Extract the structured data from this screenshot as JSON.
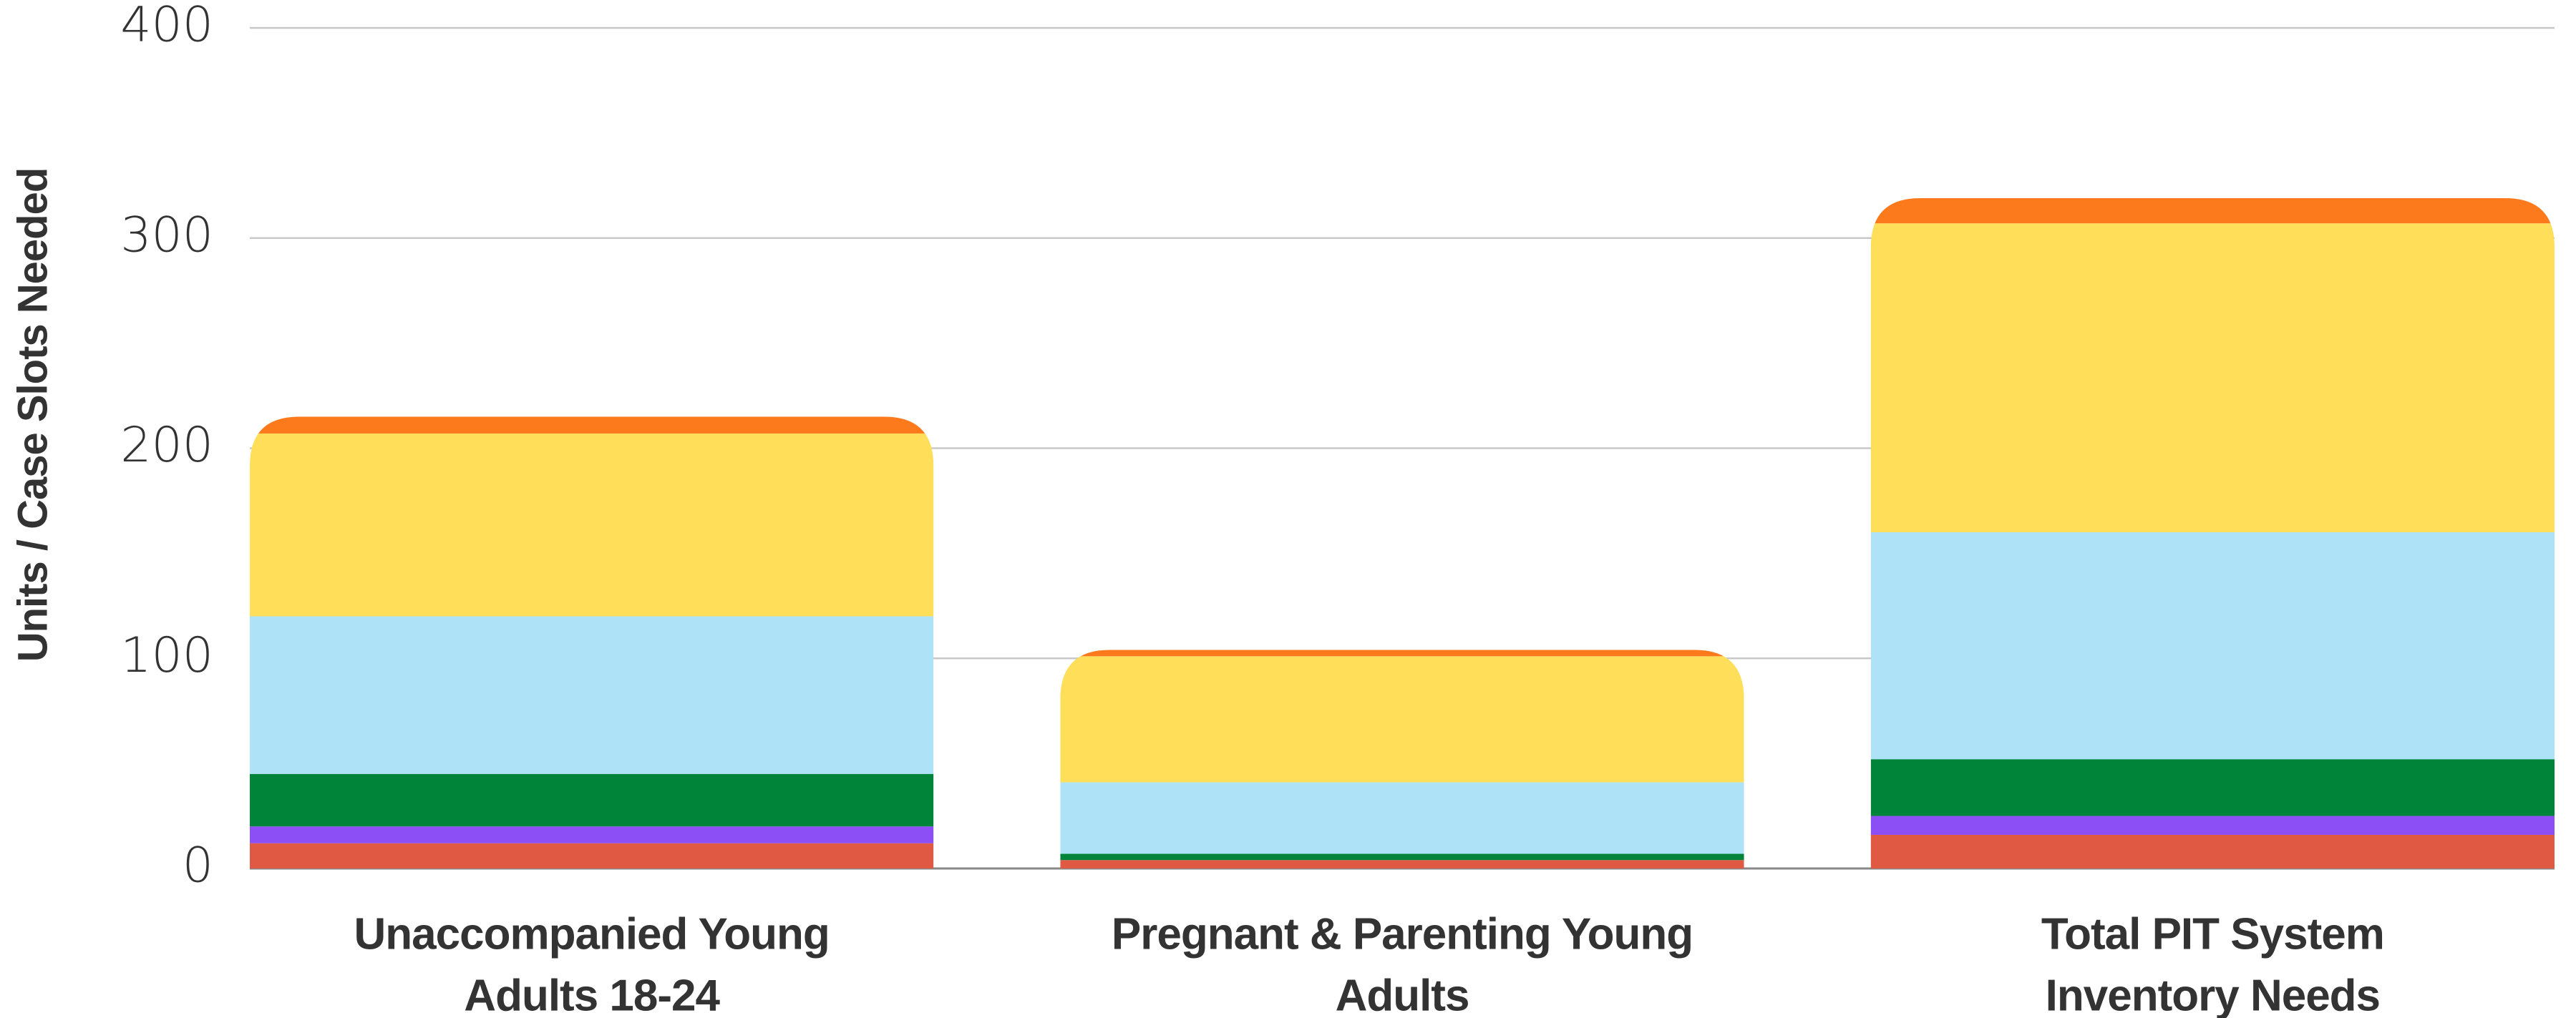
{
  "chart_data": {
    "type": "stacked_bar",
    "y_label": "Units / Case Slots Needed",
    "categories": [
      [
        "Unaccompanied Young",
        "Adults 18-24"
      ],
      [
        "Pregnant & Parenting Young",
        "Adults"
      ],
      [
        "Total PIT System",
        "Inventory Needs"
      ]
    ],
    "series": [
      {
        "color": "#e05a43",
        "values": [
          12,
          4,
          16
        ]
      },
      {
        "color": "#8c4ff5",
        "values": [
          8,
          0,
          9
        ]
      },
      {
        "color": "#00843a",
        "values": [
          25,
          3,
          27
        ]
      },
      {
        "color": "#aee3f7",
        "values": [
          75,
          34,
          108
        ]
      },
      {
        "color": "#ffde59",
        "values": [
          87,
          60,
          147
        ]
      },
      {
        "color": "#fd7a1c",
        "values": [
          8,
          3,
          12
        ]
      }
    ],
    "ylim": [
      0,
      400
    ],
    "yticks": [
      0,
      100,
      200,
      300,
      400
    ],
    "grid": true
  }
}
